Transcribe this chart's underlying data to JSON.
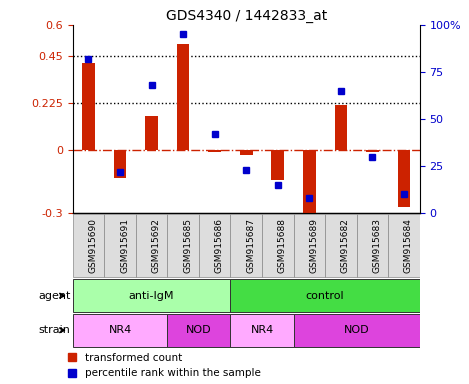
{
  "title": "GDS4340 / 1442833_at",
  "samples": [
    "GSM915690",
    "GSM915691",
    "GSM915692",
    "GSM915685",
    "GSM915686",
    "GSM915687",
    "GSM915688",
    "GSM915689",
    "GSM915682",
    "GSM915683",
    "GSM915684"
  ],
  "transformed_count": [
    0.42,
    -0.13,
    0.165,
    0.51,
    -0.01,
    -0.02,
    -0.14,
    -0.34,
    0.215,
    -0.01,
    -0.27
  ],
  "percentile_rank": [
    82,
    22,
    68,
    95,
    42,
    23,
    15,
    8,
    65,
    30,
    10
  ],
  "ylim_left": [
    -0.3,
    0.6
  ],
  "ylim_right": [
    0,
    100
  ],
  "yticks_left": [
    -0.3,
    0,
    0.225,
    0.45,
    0.6
  ],
  "yticks_right": [
    0,
    25,
    50,
    75,
    100
  ],
  "ytick_labels_left": [
    "-0.3",
    "0",
    "0.225",
    "0.45",
    "0.6"
  ],
  "ytick_labels_right": [
    "0",
    "25",
    "50",
    "75",
    "100%"
  ],
  "hlines": [
    0.225,
    0.45
  ],
  "agent_groups": [
    {
      "label": "anti-IgM",
      "start": 0,
      "end": 5,
      "color": "#AAFFAA"
    },
    {
      "label": "control",
      "start": 5,
      "end": 11,
      "color": "#44DD44"
    }
  ],
  "strain_groups": [
    {
      "label": "NR4",
      "start": 0,
      "end": 3,
      "color": "#FFAAFF"
    },
    {
      "label": "NOD",
      "start": 3,
      "end": 5,
      "color": "#DD44DD"
    },
    {
      "label": "NR4",
      "start": 5,
      "end": 7,
      "color": "#FFAAFF"
    },
    {
      "label": "NOD",
      "start": 7,
      "end": 11,
      "color": "#DD44DD"
    }
  ],
  "bar_color": "#CC2200",
  "dot_color": "#0000CC",
  "zero_line_color": "#CC2200",
  "background_color": "#FFFFFF",
  "plot_bg_color": "#FFFFFF",
  "tick_box_color": "#DDDDDD",
  "bar_width": 0.4,
  "dot_size": 5
}
